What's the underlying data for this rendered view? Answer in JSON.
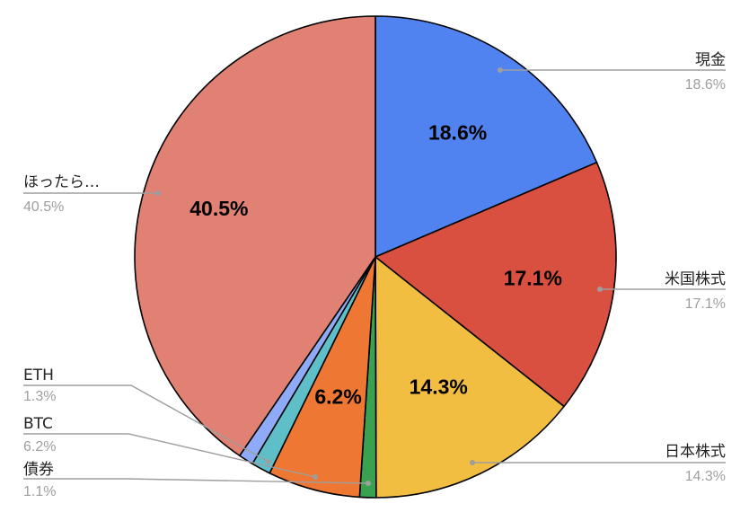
{
  "chart_data": {
    "type": "pie",
    "title": "",
    "slices": [
      {
        "name": "現金",
        "value": 18.6,
        "slice_label": "18.6%",
        "legend_value": "18.6%",
        "color": "#5083ef"
      },
      {
        "name": "米国株式",
        "value": 17.1,
        "slice_label": "17.1%",
        "legend_value": "17.1%",
        "color": "#d95040"
      },
      {
        "name": "日本株式",
        "value": 14.3,
        "slice_label": "14.3%",
        "legend_value": "14.3%",
        "color": "#f1be42"
      },
      {
        "name": "債券",
        "value": 1.1,
        "slice_label": "",
        "legend_value": "1.1%",
        "color": "#3aa150"
      },
      {
        "name": "BTC",
        "value": 6.2,
        "slice_label": "6.2%",
        "legend_value": "6.2%",
        "color": "#ee7733"
      },
      {
        "name": "ETH",
        "value": 1.3,
        "slice_label": "",
        "legend_value": "1.3%",
        "color": "#5fbfc9"
      },
      {
        "name": "",
        "value": 1.0,
        "slice_label": "",
        "legend_value": "",
        "color": "#8fabf7"
      },
      {
        "name": "ほったら…",
        "value": 40.5,
        "slice_label": "40.5%",
        "legend_value": "40.5%",
        "color": "#e08174"
      }
    ],
    "start_angle_deg": 0,
    "direction": "clockwise",
    "legend": "callouts-left-right"
  }
}
